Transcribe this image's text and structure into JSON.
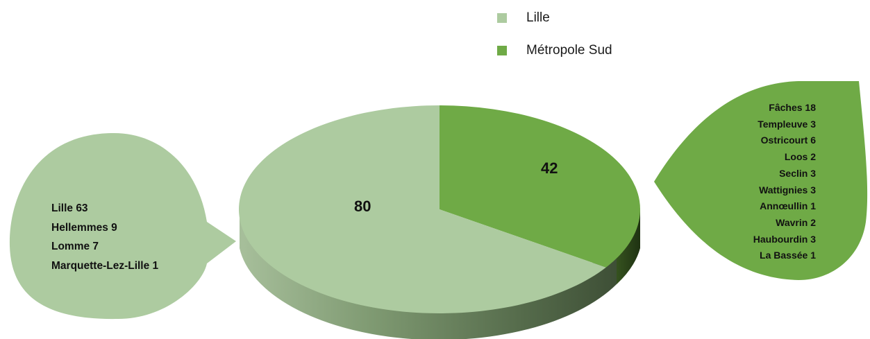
{
  "chart_data": {
    "type": "pie",
    "title": "",
    "legend_position": "top-right",
    "series": [
      {
        "name": "Lille",
        "value": 80,
        "color": "#adcba0"
      },
      {
        "name": "Métropole Sud",
        "value": 42,
        "color": "#6faa46"
      }
    ],
    "annotations": {
      "lille": [
        "Lille 63",
        "Hellemmes 9",
        "Lomme 7",
        "Marquette-Lez-Lille 1"
      ],
      "metropole_sud": [
        "Fâches 18",
        "Templeuve 3",
        "Ostricourt 6",
        "Loos 2",
        "Seclin 3",
        "Wattignies 3",
        "Annœullin 1",
        "Wavrin 2",
        "Haubourdin 3",
        "La Bassée 1"
      ]
    }
  }
}
